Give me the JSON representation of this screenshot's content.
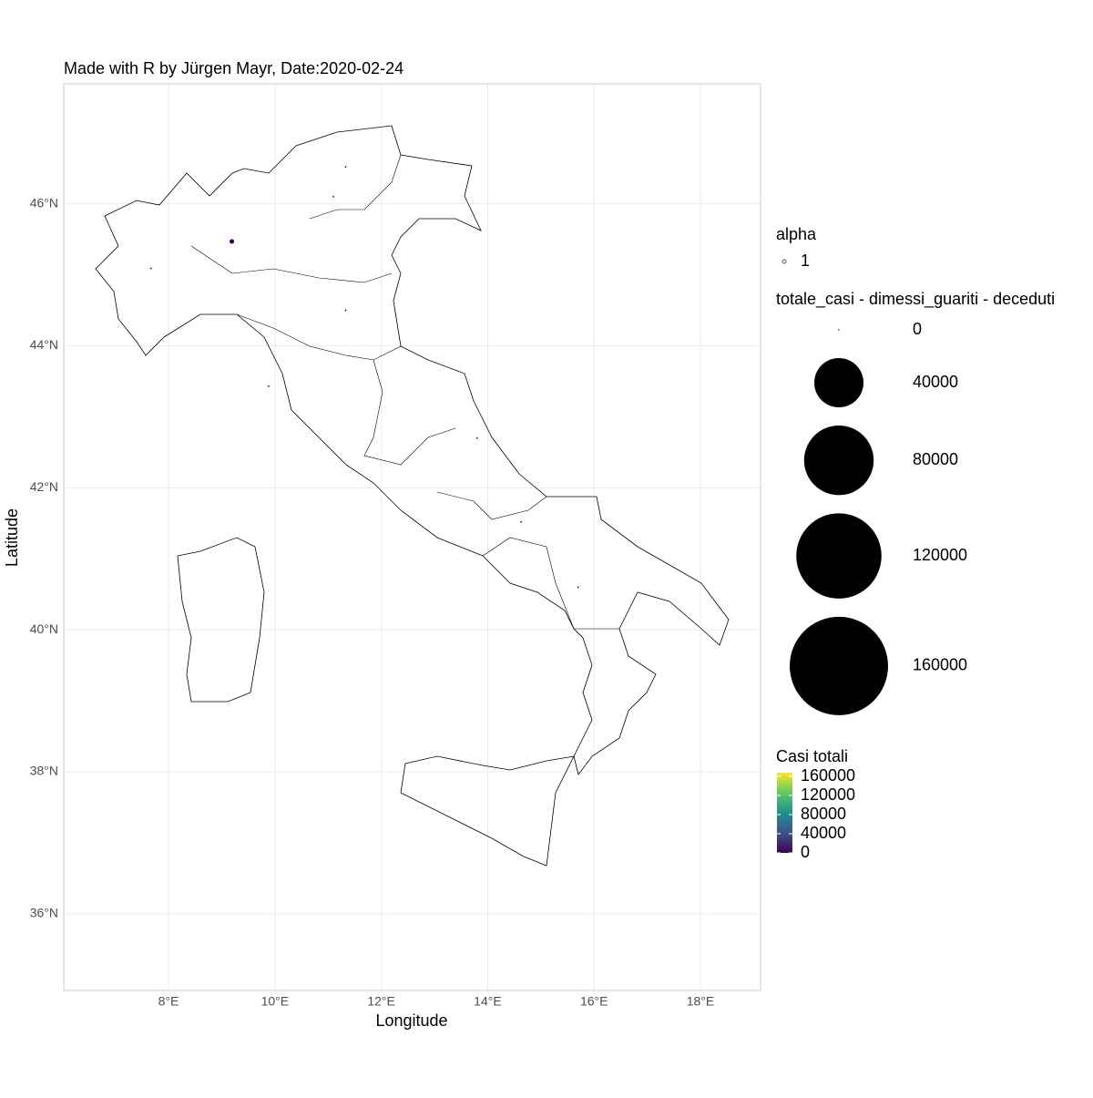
{
  "chart_data": {
    "type": "scatter",
    "title": "Made with R by Jürgen Mayr, Date:2020-02-24",
    "x_label": "Longitude",
    "y_label": "Latitude",
    "xlim": [
      6.03,
      19.13
    ],
    "ylim": [
      34.92,
      47.69
    ],
    "xticks": [
      {
        "value": 8,
        "label": "8°E"
      },
      {
        "value": 10,
        "label": "10°E"
      },
      {
        "value": 12,
        "label": "12°E"
      },
      {
        "value": 14,
        "label": "14°E"
      },
      {
        "value": 16,
        "label": "16°E"
      },
      {
        "value": 18,
        "label": "18°E"
      }
    ],
    "yticks": [
      {
        "value": 36,
        "label": "36°N"
      },
      {
        "value": 38,
        "label": "38°N"
      },
      {
        "value": 40,
        "label": "40°N"
      },
      {
        "value": 42,
        "label": "42°N"
      },
      {
        "value": 44,
        "label": "44°N"
      },
      {
        "value": 46,
        "label": "46°N"
      }
    ],
    "grid": true,
    "color": "#440154",
    "x": [
      9.19,
      11.33,
      7.67,
      11.33,
      11.1,
      14.63,
      9.88,
      13.8,
      15.7
    ],
    "y": [
      45.47,
      44.5,
      45.09,
      46.52,
      46.1,
      41.52,
      43.43,
      42.7,
      40.6
    ],
    "values": [
      300,
      26,
      3,
      0,
      0,
      0,
      2,
      0,
      0
    ],
    "legends": {
      "alpha": {
        "title": "alpha",
        "labels": [
          1
        ]
      },
      "size": {
        "title": "totale_casi - dimessi_guariti - deceduti",
        "values": [
          0,
          40000,
          80000,
          120000,
          160000
        ]
      },
      "color": {
        "title": "Casi totali",
        "ticks": [
          0,
          40000,
          80000,
          120000,
          160000
        ],
        "colors": [
          "#440154",
          "#3b528b",
          "#21908c",
          "#5dc963",
          "#fde725"
        ]
      }
    }
  }
}
